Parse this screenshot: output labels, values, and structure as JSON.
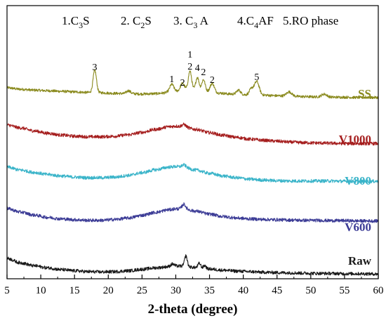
{
  "chart_data": {
    "type": "line",
    "xlabel": "2-theta (degree)",
    "ylabel": "",
    "xlim": [
      5,
      60
    ],
    "x_ticks": [
      5,
      10,
      15,
      20,
      25,
      30,
      35,
      40,
      45,
      50,
      55,
      60
    ],
    "grid": false,
    "phase_legend": [
      {
        "num": "1.",
        "main": "C",
        "sub": "3",
        "rest": "S"
      },
      {
        "num": "2. ",
        "main": "C",
        "sub": "2",
        "rest": "S"
      },
      {
        "num": "3. ",
        "main": "C",
        "sub": "3",
        "rest": " A"
      },
      {
        "num": "4.",
        "main": "C",
        "sub": "4",
        "rest": "AF"
      },
      {
        "num": "5.RO phase",
        "main": "",
        "sub": "",
        "rest": ""
      }
    ],
    "peak_labels": [
      {
        "text": "3",
        "x": 18.0
      },
      {
        "text": "1",
        "x": 29.4
      },
      {
        "text": "2",
        "x": 31.0
      },
      {
        "text": "1",
        "x": 32.1
      },
      {
        "text": "2",
        "x": 32.1
      },
      {
        "text": "4",
        "x": 33.2
      },
      {
        "text": "2",
        "x": 34.1
      },
      {
        "text": "2",
        "x": 35.4
      },
      {
        "text": "5",
        "x": 42.0
      }
    ],
    "series": [
      {
        "name": "SS",
        "color": "#8a8a1e",
        "amorphous": false,
        "x": [
          5,
          7,
          9,
          11,
          13,
          15,
          17,
          18,
          19,
          21,
          23,
          25,
          27,
          28,
          29,
          29.4,
          30,
          31,
          32.1,
          33.2,
          34.1,
          35.4,
          36.5,
          38,
          39.5,
          41,
          42,
          43,
          45,
          47,
          49,
          51,
          53,
          55,
          57,
          60
        ],
        "y": [
          0.0,
          -0.5,
          -0.8,
          -1.0,
          -1.2,
          -1.4,
          -1.6,
          -1.6,
          -1.7,
          -1.9,
          -2.0,
          -2.1,
          -2.0,
          -1.8,
          -1.5,
          -1.3,
          -1.2,
          -1.0,
          -0.9,
          -1.0,
          -1.2,
          -1.5,
          -1.8,
          -2.1,
          -2.3,
          -2.4,
          -2.4,
          -2.5,
          -2.7,
          -2.9,
          -3.0,
          -3.1,
          -3.2,
          -3.2,
          -3.3,
          -3.3
        ],
        "peaks": [
          [
            18.0,
            7.5,
            0.25
          ],
          [
            23.0,
            1.0,
            0.3
          ],
          [
            29.4,
            2.5,
            0.3
          ],
          [
            31.0,
            2.5,
            0.3
          ],
          [
            32.1,
            6.5,
            0.25
          ],
          [
            33.2,
            4.5,
            0.25
          ],
          [
            34.1,
            4.0,
            0.25
          ],
          [
            35.4,
            3.0,
            0.3
          ],
          [
            39.3,
            1.5,
            0.3
          ],
          [
            41.2,
            2.0,
            0.3
          ],
          [
            42.0,
            4.5,
            0.35
          ],
          [
            46.8,
            1.5,
            0.4
          ],
          [
            52.0,
            1.0,
            0.4
          ]
        ]
      },
      {
        "name": "V1000",
        "color": "#a51e1e",
        "amorphous": true,
        "x": [
          5,
          7,
          9,
          11,
          13,
          15,
          17,
          19,
          21,
          23,
          25,
          27,
          29,
          30,
          31,
          33,
          35,
          37,
          39,
          41,
          43,
          45,
          47,
          49,
          51,
          53,
          55,
          57,
          60
        ],
        "y": [
          0.0,
          -1.0,
          -2.0,
          -2.8,
          -3.4,
          -3.8,
          -4.0,
          -4.0,
          -3.8,
          -3.3,
          -2.5,
          -1.5,
          -0.6,
          -0.4,
          -0.6,
          -1.5,
          -2.6,
          -3.5,
          -4.2,
          -4.8,
          -5.2,
          -5.5,
          -5.8,
          -6.0,
          -6.1,
          -6.2,
          -6.3,
          -6.3,
          -6.3
        ],
        "peaks": [
          [
            31.2,
            0.8,
            0.3
          ]
        ]
      },
      {
        "name": "V800",
        "color": "#3ab4c9",
        "amorphous": true,
        "x": [
          5,
          7,
          9,
          11,
          13,
          15,
          17,
          19,
          21,
          23,
          25,
          27,
          29,
          30,
          31,
          33,
          35,
          37,
          39,
          41,
          43,
          45,
          47,
          49,
          51,
          53,
          55,
          57,
          60
        ],
        "y": [
          0.0,
          -1.0,
          -1.8,
          -2.5,
          -3.0,
          -3.4,
          -3.6,
          -3.6,
          -3.4,
          -2.8,
          -1.9,
          -0.9,
          0.0,
          0.2,
          0.0,
          -1.0,
          -2.1,
          -3.0,
          -3.6,
          -4.1,
          -4.4,
          -4.6,
          -4.7,
          -4.7,
          -4.7,
          -4.7,
          -4.8,
          -4.8,
          -4.8
        ],
        "peaks": [
          [
            31.2,
            0.8,
            0.3
          ]
        ]
      },
      {
        "name": "V600",
        "color": "#3c3c96",
        "amorphous": true,
        "x": [
          5,
          7,
          9,
          11,
          13,
          15,
          17,
          19,
          21,
          23,
          25,
          27,
          29,
          30,
          31,
          33,
          35,
          37,
          39,
          41,
          43,
          45,
          47,
          49,
          51,
          53,
          55,
          57,
          60
        ],
        "y": [
          0.0,
          -1.2,
          -2.2,
          -3.0,
          -3.5,
          -3.8,
          -4.0,
          -4.0,
          -3.7,
          -3.2,
          -2.3,
          -1.3,
          -0.4,
          -0.1,
          0.0,
          -0.9,
          -1.9,
          -2.7,
          -3.2,
          -3.5,
          -3.7,
          -3.8,
          -3.9,
          -4.0,
          -4.0,
          -4.1,
          -4.1,
          -4.2,
          -4.2
        ],
        "peaks": [
          [
            31.2,
            1.5,
            0.25
          ]
        ]
      },
      {
        "name": "Raw",
        "color": "#1a1a1a",
        "amorphous": true,
        "x": [
          5,
          7,
          9,
          11,
          13,
          15,
          17,
          19,
          21,
          23,
          25,
          27,
          29,
          30,
          31,
          33,
          35,
          37,
          39,
          41,
          43,
          45,
          47,
          49,
          51,
          53,
          55,
          57,
          60
        ],
        "y": [
          0.0,
          -1.5,
          -2.5,
          -3.2,
          -3.8,
          -4.2,
          -4.5,
          -4.6,
          -4.5,
          -4.2,
          -3.7,
          -3.2,
          -2.8,
          -2.6,
          -2.6,
          -3.1,
          -3.6,
          -4.0,
          -4.3,
          -4.5,
          -4.7,
          -4.8,
          -4.9,
          -5.0,
          -5.1,
          -5.1,
          -5.2,
          -5.2,
          -5.3
        ],
        "peaks": [
          [
            31.5,
            3.5,
            0.2
          ],
          [
            33.5,
            1.5,
            0.2
          ],
          [
            34.3,
            1.0,
            0.2
          ],
          [
            29.5,
            0.8,
            0.25
          ]
        ]
      }
    ]
  }
}
